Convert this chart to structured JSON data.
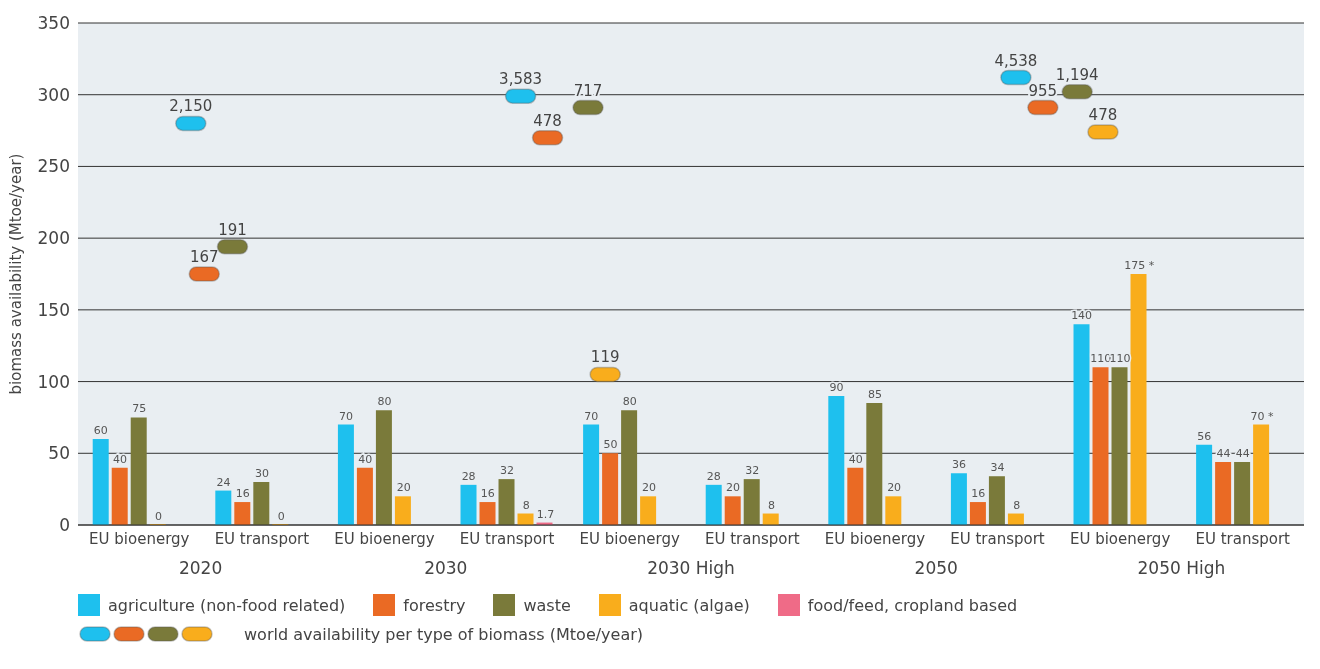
{
  "chart_data": {
    "type": "bar",
    "ylabel": "biomass availability (Mtoe/year)",
    "categories": [
      "EU bioenergy",
      "EU transport",
      "EU bioenergy",
      "EU transport",
      "EU bioenergy",
      "EU transport",
      "EU bioenergy",
      "EU transport",
      "EU bioenergy",
      "EU transport"
    ],
    "series": [
      {
        "name": "agriculture (non-food related)",
        "color": "#1ec0ee",
        "values": [
          60,
          24,
          70,
          28,
          70,
          28,
          90,
          36,
          140,
          56
        ],
        "value_labels": [
          "60",
          "24",
          "70",
          "28",
          "70",
          "28",
          "90",
          "36",
          "140",
          "56"
        ]
      },
      {
        "name": "forestry",
        "color": "#ea6a24",
        "values": [
          40,
          16,
          40,
          16,
          50,
          20,
          40,
          16,
          110,
          44
        ],
        "value_labels": [
          "40",
          "16",
          "40",
          "16",
          "50",
          "20",
          "40",
          "16",
          "110",
          "44"
        ]
      },
      {
        "name": "waste",
        "color": "#7a7a3a",
        "values": [
          75,
          30,
          80,
          32,
          80,
          32,
          85,
          34,
          110,
          44
        ],
        "value_labels": [
          "75",
          "30",
          "80",
          "32",
          "80",
          "32",
          "85",
          "34",
          "110",
          "44"
        ]
      },
      {
        "name": "aquatic (algae)",
        "color": "#f9ad1c",
        "values": [
          0,
          0,
          20,
          8,
          20,
          8,
          20,
          8,
          175,
          70
        ],
        "value_labels": [
          "0",
          "0",
          "20",
          "8",
          "20",
          "8",
          "20",
          "8",
          "175 *",
          "70 *"
        ]
      },
      {
        "name": "food/feed, cropland based",
        "color": "#ef6b87",
        "values": [
          null,
          null,
          null,
          1.7,
          null,
          null,
          null,
          null,
          null,
          null
        ],
        "value_labels": [
          null,
          null,
          null,
          "1.7",
          null,
          null,
          null,
          null,
          null,
          null
        ]
      }
    ],
    "ylim": [
      0,
      350
    ],
    "yticks": [
      0,
      50,
      100,
      150,
      200,
      250,
      300,
      350
    ],
    "grid": "y",
    "legend": "bottom",
    "annotations": [
      "2020",
      "2030",
      "2030 High",
      "2050",
      "2050 High",
      "2,150",
      "167",
      "191",
      "3,583",
      "478",
      "717",
      "119",
      "4,538",
      "955",
      "1,194",
      "478",
      "world availability per type of biomass (Mtoe/year)"
    ]
  }
}
